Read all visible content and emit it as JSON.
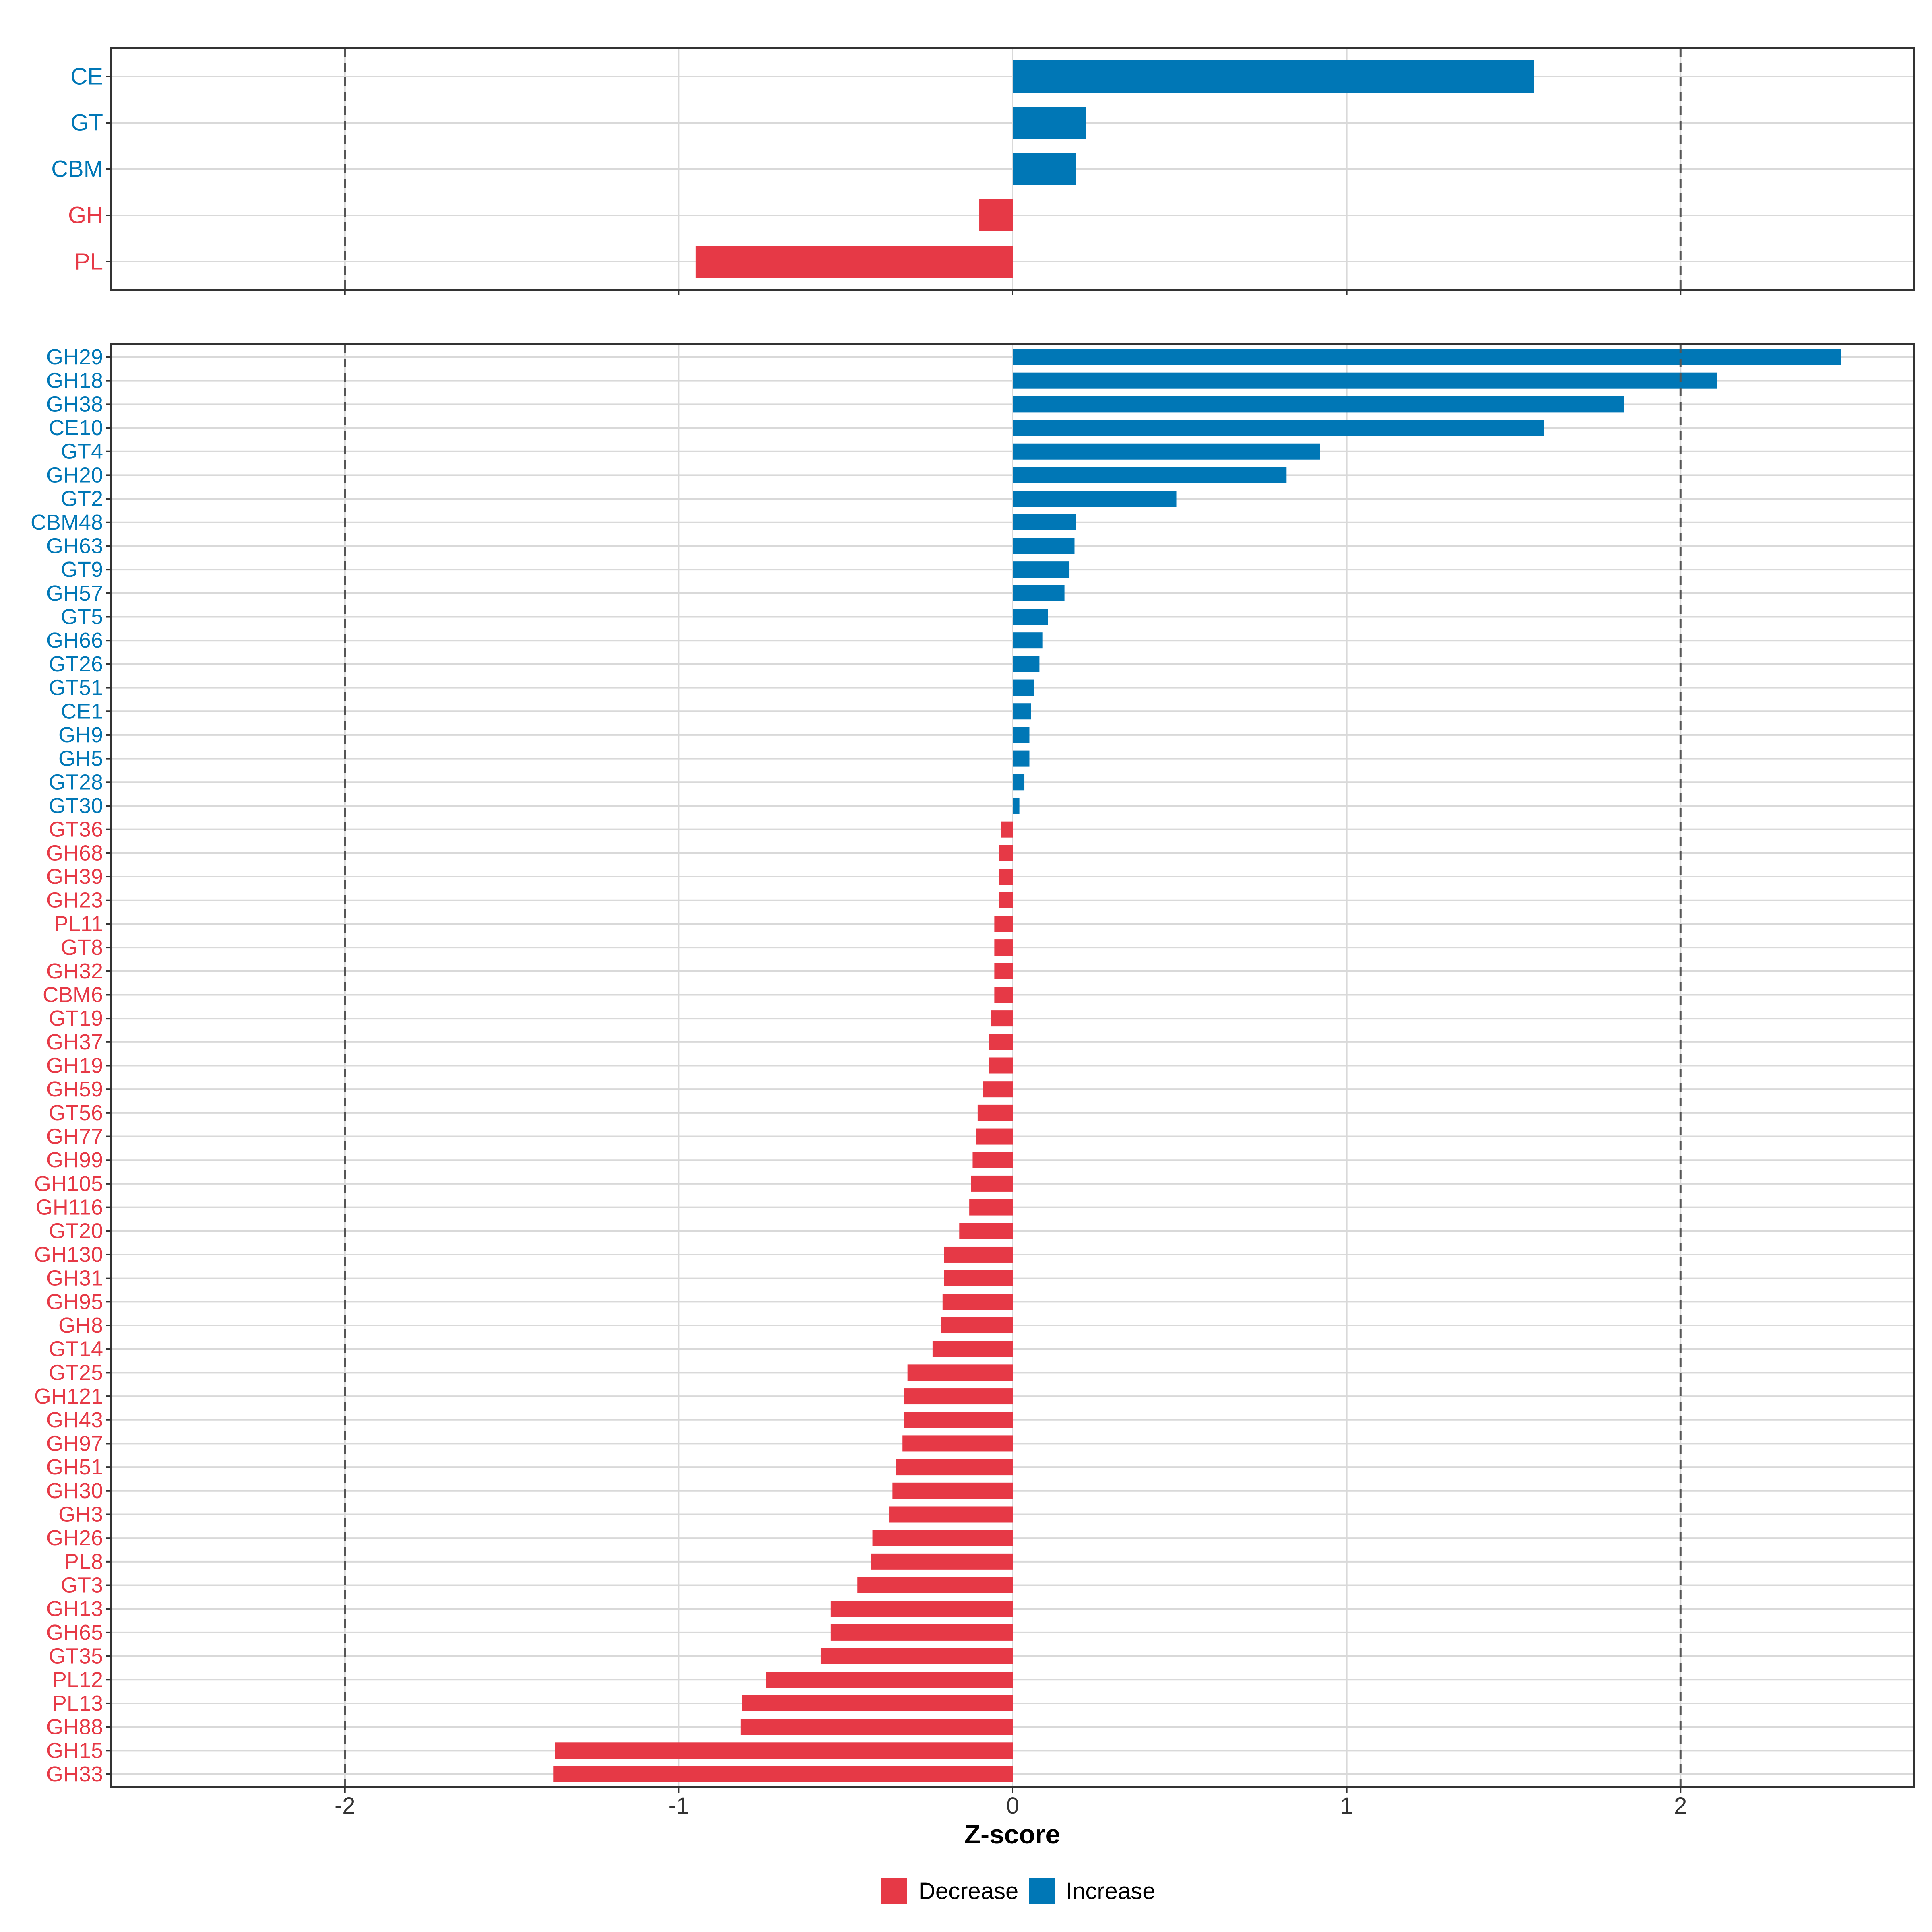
{
  "chart_data": [
    {
      "type": "bar",
      "orientation": "horizontal",
      "panel": "class",
      "categories": [
        "CE",
        "GT",
        "CBM",
        "GH",
        "PL"
      ],
      "values": [
        1.56,
        0.22,
        0.19,
        -0.1,
        -0.95
      ],
      "xlim": [
        -2.7,
        2.7
      ],
      "threshold_lines": [
        -2,
        2
      ],
      "grid": true
    },
    {
      "type": "bar",
      "orientation": "horizontal",
      "panel": "family",
      "categories": [
        "GH29",
        "GH18",
        "GH38",
        "CE10",
        "GT4",
        "GH20",
        "GT2",
        "CBM48",
        "GH63",
        "GT9",
        "GH57",
        "GT5",
        "GH66",
        "GT26",
        "GT51",
        "CE1",
        "GH9",
        "GH5",
        "GT28",
        "GT30",
        "GT36",
        "GH68",
        "GH39",
        "GH23",
        "PL11",
        "GT8",
        "GH32",
        "CBM6",
        "GT19",
        "GH37",
        "GH19",
        "GH59",
        "GT56",
        "GH77",
        "GH99",
        "GH105",
        "GH116",
        "GT20",
        "GH130",
        "GH31",
        "GH95",
        "GH8",
        "GT14",
        "GT25",
        "GH121",
        "GH43",
        "GH97",
        "GH51",
        "GH30",
        "GH3",
        "GH26",
        "PL8",
        "GT3",
        "GH13",
        "GH65",
        "GT35",
        "PL12",
        "PL13",
        "GH88",
        "GH15",
        "GH33"
      ],
      "values": [
        2.48,
        2.11,
        1.83,
        1.59,
        0.92,
        0.82,
        0.49,
        0.19,
        0.185,
        0.17,
        0.155,
        0.105,
        0.09,
        0.08,
        0.065,
        0.055,
        0.05,
        0.05,
        0.035,
        0.02,
        -0.035,
        -0.04,
        -0.04,
        -0.04,
        -0.055,
        -0.055,
        -0.055,
        -0.055,
        -0.065,
        -0.07,
        -0.07,
        -0.09,
        -0.105,
        -0.11,
        -0.12,
        -0.125,
        -0.13,
        -0.16,
        -0.205,
        -0.205,
        -0.21,
        -0.215,
        -0.24,
        -0.315,
        -0.325,
        -0.325,
        -0.33,
        -0.35,
        -0.36,
        -0.37,
        -0.42,
        -0.425,
        -0.465,
        -0.545,
        -0.545,
        -0.575,
        -0.74,
        -0.81,
        -0.815,
        -1.37,
        -1.375
      ],
      "xlim": [
        -2.7,
        2.7
      ],
      "threshold_lines": [
        -2,
        2
      ],
      "grid": true,
      "xlabel": "Z-score",
      "xticks": [
        -2,
        -1,
        0,
        1,
        2
      ],
      "xtick_labels": [
        "-2",
        "-1",
        "0",
        "1",
        "2"
      ]
    }
  ],
  "legend": {
    "placement": "bottom-center",
    "items": [
      {
        "label": "Decrease",
        "color": "#E63946"
      },
      {
        "label": "Increase",
        "color": "#0077B6"
      }
    ]
  },
  "colors": {
    "decrease": "#E63946",
    "increase": "#0077B6",
    "grid": "#D9D9D9",
    "threshold": "#555555",
    "frame": "#333333"
  }
}
